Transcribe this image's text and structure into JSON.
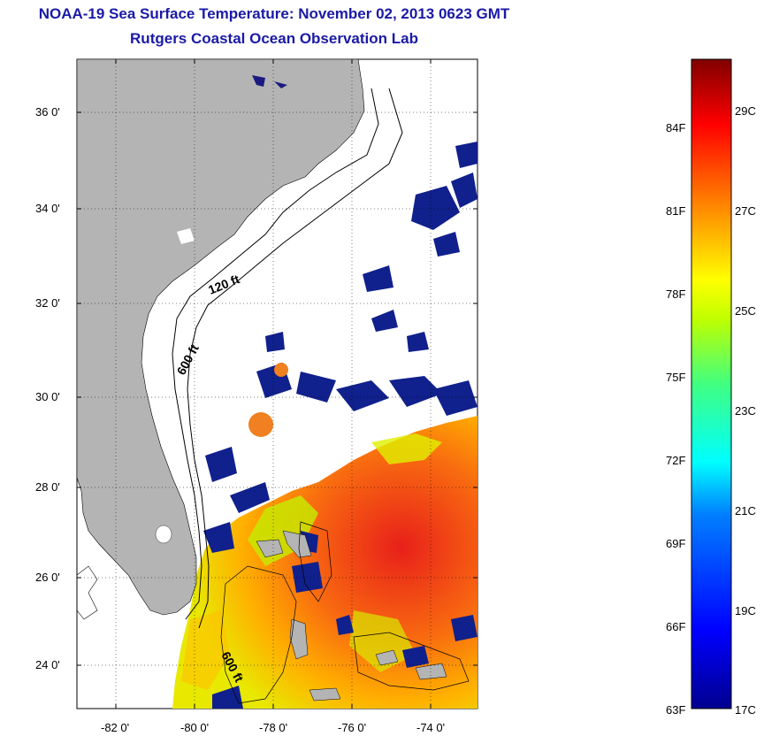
{
  "header": {
    "title": "NOAA-19 Sea Surface Temperature:  November 02, 2013 0623 GMT",
    "subtitle": "Rutgers Coastal Ocean Observation Lab"
  },
  "map": {
    "lat_ticks": [
      "36 0'",
      "34 0'",
      "32 0'",
      "30 0'",
      "28 0'",
      "26 0'",
      "24 0'"
    ],
    "lon_ticks": [
      "-82 0'",
      "-80 0'",
      "-78 0'",
      "-76 0'",
      "-74 0'"
    ],
    "contours": [
      "120 ft",
      "600 ft",
      "600 ft"
    ],
    "land_color": "#b4b4b4"
  },
  "colorbar": {
    "f_labels": [
      "84F",
      "81F",
      "78F",
      "75F",
      "72F",
      "69F",
      "66F",
      "63F"
    ],
    "c_labels": [
      "29C",
      "27C",
      "25C",
      "23C",
      "21C",
      "19C",
      "17C"
    ]
  }
}
